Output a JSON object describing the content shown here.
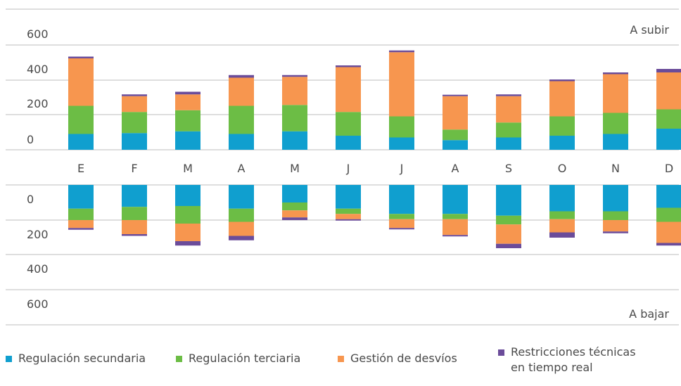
{
  "chart_data": {
    "type": "bar",
    "stacked": true,
    "categories": [
      "E",
      "F",
      "M",
      "A",
      "M",
      "J",
      "J",
      "A",
      "S",
      "O",
      "N",
      "D"
    ],
    "colors": {
      "secundaria": "#109fcf",
      "terciaria": "#6cbd45",
      "desvios": "#f7964f",
      "restricciones": "#6b4c9a"
    },
    "panels": {
      "subir": {
        "label": "A subir",
        "yticks": [
          "600",
          "400",
          "200",
          "0"
        ],
        "ylim": [
          0,
          600
        ],
        "series": [
          {
            "key": "secundaria",
            "values": [
              90,
              95,
              105,
              90,
              105,
              80,
              70,
              55,
              70,
              80,
              90,
              120
            ]
          },
          {
            "key": "terciaria",
            "values": [
              160,
              120,
              120,
              160,
              150,
              135,
              120,
              60,
              85,
              110,
              120,
              110
            ]
          },
          {
            "key": "desvios",
            "values": [
              270,
              90,
              90,
              160,
              160,
              255,
              365,
              190,
              150,
              200,
              220,
              210
            ]
          },
          {
            "key": "restricciones",
            "values": [
              10,
              10,
              15,
              15,
              10,
              10,
              10,
              8,
              10,
              10,
              10,
              20
            ]
          }
        ]
      },
      "bajar": {
        "label": "A bajar",
        "yticks": [
          "0",
          "200",
          "400",
          "600"
        ],
        "ylim": [
          0,
          600
        ],
        "series": [
          {
            "key": "secundaria",
            "values": [
              135,
              125,
              120,
              135,
              100,
              135,
              165,
              165,
              175,
              150,
              150,
              130
            ]
          },
          {
            "key": "terciaria",
            "values": [
              65,
              75,
              100,
              75,
              45,
              30,
              30,
              30,
              50,
              45,
              50,
              80
            ]
          },
          {
            "key": "desvios",
            "values": [
              45,
              80,
              100,
              80,
              40,
              30,
              50,
              90,
              110,
              75,
              65,
              120
            ]
          },
          {
            "key": "restricciones",
            "values": [
              10,
              10,
              25,
              25,
              15,
              8,
              8,
              8,
              25,
              30,
              10,
              15
            ]
          }
        ]
      }
    },
    "legend": [
      {
        "key": "secundaria",
        "label": "Regulación secundaria"
      },
      {
        "key": "terciaria",
        "label": "Regulación terciaria"
      },
      {
        "key": "desvios",
        "label": "Gestión de desvíos"
      },
      {
        "key": "restricciones",
        "label_lines": [
          "Restricciones técnicas",
          "en tiempo real"
        ]
      }
    ]
  }
}
